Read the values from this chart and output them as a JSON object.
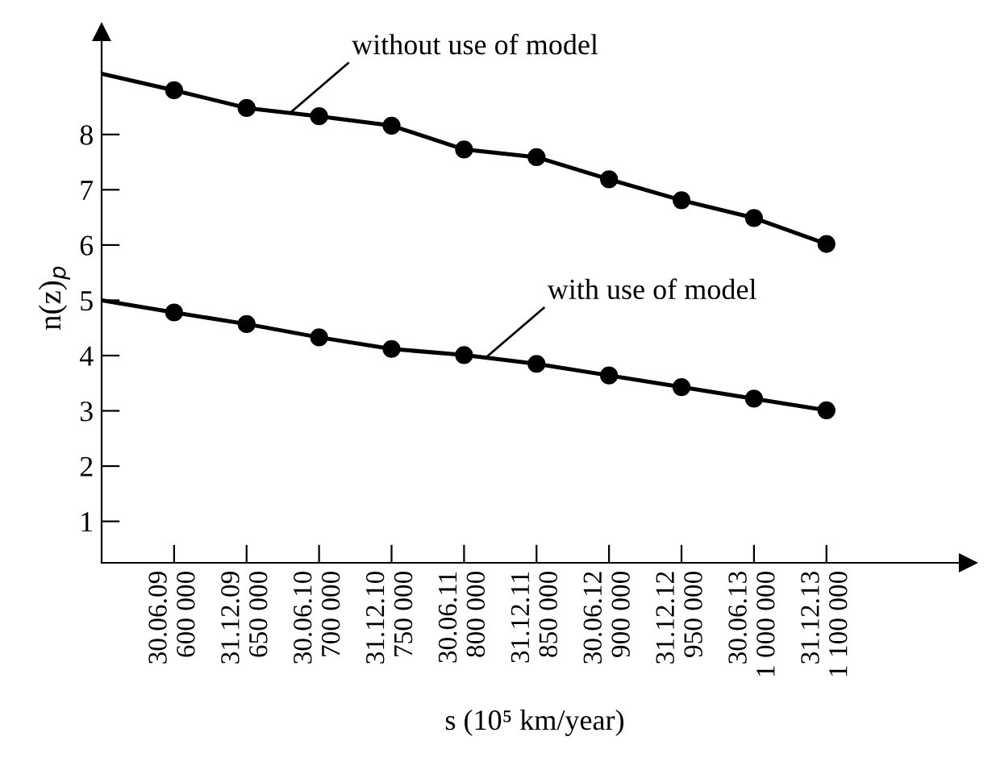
{
  "chart_data": {
    "type": "line",
    "xlabel": "s (10⁵ km/year)",
    "ylabel": "n(z)$_{p}$",
    "categories": [
      null,
      "30.06.09\n600 000",
      "31.12.09\n650 000",
      "30.06.10\n700 000",
      "31.12.10\n750 000",
      "30.06.11\n800 000",
      "31.12.11\n850 000",
      "30.06.12\n900 000",
      "31.12.12\n950 000",
      "30.06.13\n1 000 000",
      "31.12.13\n1 100 000"
    ],
    "series": [
      {
        "color": "#000000",
        "values": [
          9.1,
          8.8,
          8.48,
          8.33,
          8.16,
          7.73,
          7.59,
          7.19,
          6.81,
          6.49,
          6.02
        ]
      },
      {
        "color": "#000000",
        "values": [
          5.0,
          4.78,
          4.57,
          4.33,
          4.12,
          4.01,
          3.85,
          3.64,
          3.43,
          3.22,
          3.01
        ]
      }
    ],
    "annotations": [
      "without use of model",
      "with use of model"
    ],
    "ylim": [
      0.25,
      9.85
    ],
    "yticks": [
      1,
      2,
      3,
      4,
      5,
      6,
      7,
      8
    ],
    "marker": "circle",
    "line_style": "solid",
    "grid": false
  }
}
